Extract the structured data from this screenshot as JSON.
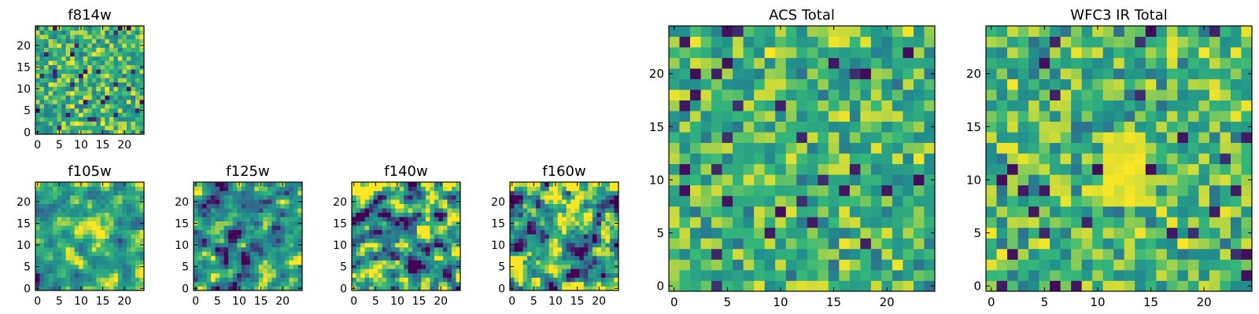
{
  "chart_data": [
    {
      "type": "heatmap",
      "title": "f814w",
      "xlabel": "",
      "ylabel": "",
      "grid_size": 25,
      "xlim": [
        0,
        24
      ],
      "ylim": [
        0,
        24
      ],
      "xticks": [
        0,
        5,
        10,
        15,
        20
      ],
      "yticks": [
        0,
        5,
        10,
        15,
        20
      ],
      "colormap": "viridis",
      "colormap_stops": [
        "#440154",
        "#31688e",
        "#21908d",
        "#35b779",
        "#fde725"
      ],
      "grid": false,
      "legend": "none",
      "pattern": "speckled-fine"
    },
    {
      "type": "heatmap",
      "title": "f105w",
      "xlabel": "",
      "ylabel": "",
      "grid_size": 25,
      "xlim": [
        0,
        24
      ],
      "ylim": [
        0,
        24
      ],
      "xticks": [
        0,
        5,
        10,
        15,
        20
      ],
      "yticks": [
        0,
        5,
        10,
        15,
        20
      ],
      "colormap": "viridis",
      "colormap_stops": [
        "#440154",
        "#31688e",
        "#21908d",
        "#35b779",
        "#fde725"
      ],
      "grid": false,
      "legend": "none",
      "pattern": "smooth-bright"
    },
    {
      "type": "heatmap",
      "title": "f125w",
      "xlabel": "",
      "ylabel": "",
      "grid_size": 25,
      "xlim": [
        0,
        24
      ],
      "ylim": [
        0,
        24
      ],
      "xticks": [
        0,
        5,
        10,
        15,
        20
      ],
      "yticks": [
        0,
        5,
        10,
        15,
        20
      ],
      "colormap": "viridis",
      "colormap_stops": [
        "#440154",
        "#31688e",
        "#21908d",
        "#35b779",
        "#fde725"
      ],
      "grid": false,
      "legend": "none",
      "pattern": "smooth"
    },
    {
      "type": "heatmap",
      "title": "f140w",
      "xlabel": "",
      "ylabel": "",
      "grid_size": 25,
      "xlim": [
        0,
        24
      ],
      "ylim": [
        0,
        24
      ],
      "xticks": [
        0,
        5,
        10,
        15,
        20
      ],
      "yticks": [
        0,
        5,
        10,
        15,
        20
      ],
      "colormap": "viridis",
      "colormap_stops": [
        "#440154",
        "#31688e",
        "#21908d",
        "#35b779",
        "#fde725"
      ],
      "grid": false,
      "legend": "none",
      "pattern": "smooth-contrast"
    },
    {
      "type": "heatmap",
      "title": "f160w",
      "xlabel": "",
      "ylabel": "",
      "grid_size": 25,
      "xlim": [
        0,
        24
      ],
      "ylim": [
        0,
        24
      ],
      "xticks": [
        0,
        5,
        10,
        15,
        20
      ],
      "yticks": [
        0,
        5,
        10,
        15,
        20
      ],
      "colormap": "viridis",
      "colormap_stops": [
        "#440154",
        "#31688e",
        "#21908d",
        "#35b779",
        "#fde725"
      ],
      "grid": false,
      "legend": "none",
      "pattern": "smooth-contrast"
    },
    {
      "type": "heatmap",
      "title": "ACS Total",
      "xlabel": "",
      "ylabel": "",
      "grid_size": 25,
      "xlim": [
        0,
        24
      ],
      "ylim": [
        0,
        24
      ],
      "xticks": [
        0,
        5,
        10,
        15,
        20
      ],
      "yticks": [
        0,
        5,
        10,
        15,
        20
      ],
      "colormap": "viridis",
      "colormap_stops": [
        "#440154",
        "#31688e",
        "#21908d",
        "#35b779",
        "#fde725"
      ],
      "grid": false,
      "legend": "none",
      "pattern": "speckled"
    },
    {
      "type": "heatmap",
      "title": "WFC3 IR Total",
      "xlabel": "",
      "ylabel": "",
      "grid_size": 25,
      "xlim": [
        0,
        24
      ],
      "ylim": [
        0,
        24
      ],
      "xticks": [
        0,
        5,
        10,
        15,
        20
      ],
      "yticks": [
        0,
        5,
        10,
        15,
        20
      ],
      "colormap": "viridis",
      "colormap_stops": [
        "#440154",
        "#31688e",
        "#21908d",
        "#35b779",
        "#fde725"
      ],
      "grid": false,
      "legend": "none",
      "pattern": "speckled-hotspot"
    }
  ]
}
